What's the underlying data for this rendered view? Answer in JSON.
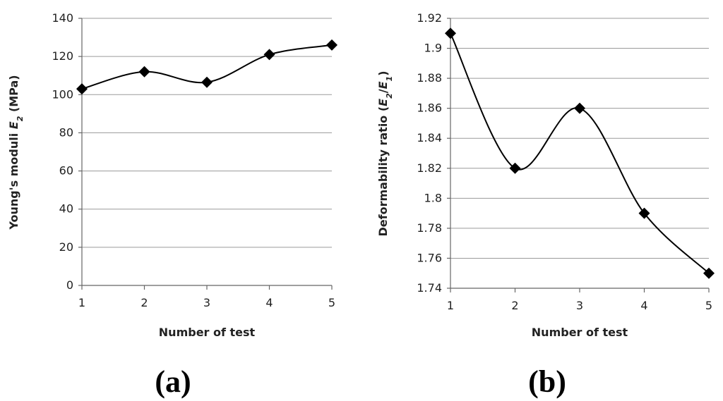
{
  "chart_data": [
    {
      "type": "line",
      "panel_label": "(a)",
      "xlabel": "Number of test",
      "ylabel": {
        "pre": "Young's moduli ",
        "var": "E",
        "sub": "2",
        "post": " (MPa)"
      },
      "x": [
        1,
        2,
        3,
        4,
        5
      ],
      "y": [
        103,
        112,
        106.5,
        121,
        126
      ],
      "xlim": [
        1,
        5
      ],
      "ylim": [
        0,
        140
      ],
      "yticks": [
        0,
        20,
        40,
        60,
        80,
        100,
        120,
        140
      ],
      "ytick_labels": [
        "0",
        "20",
        "40",
        "60",
        "80",
        "100",
        "120",
        "140"
      ],
      "xtick_labels": [
        "1",
        "2",
        "3",
        "4",
        "5"
      ],
      "grid": true,
      "smooth": true,
      "marker": "diamond",
      "line_color": "#000000"
    },
    {
      "type": "line",
      "panel_label": "(b)",
      "xlabel": "Number of test",
      "ylabel": {
        "pre": "Deformability ratio (",
        "var": "E",
        "sub": "2",
        "mid": "/",
        "var2": "E",
        "sub2": "1",
        "post": ")"
      },
      "x": [
        1,
        2,
        3,
        4,
        5
      ],
      "y": [
        1.91,
        1.82,
        1.86,
        1.79,
        1.75
      ],
      "xlim": [
        1,
        5
      ],
      "ylim": [
        1.74,
        1.92
      ],
      "yticks": [
        1.74,
        1.76,
        1.78,
        1.8,
        1.82,
        1.84,
        1.86,
        1.88,
        1.9,
        1.92
      ],
      "ytick_labels": [
        "1.74",
        "1.76",
        "1.78",
        "1.8",
        "1.82",
        "1.84",
        "1.86",
        "1.88",
        "1.9",
        "1.92"
      ],
      "xtick_labels": [
        "1",
        "2",
        "3",
        "4",
        "5"
      ],
      "grid": true,
      "smooth": true,
      "marker": "diamond",
      "line_color": "#000000"
    }
  ]
}
